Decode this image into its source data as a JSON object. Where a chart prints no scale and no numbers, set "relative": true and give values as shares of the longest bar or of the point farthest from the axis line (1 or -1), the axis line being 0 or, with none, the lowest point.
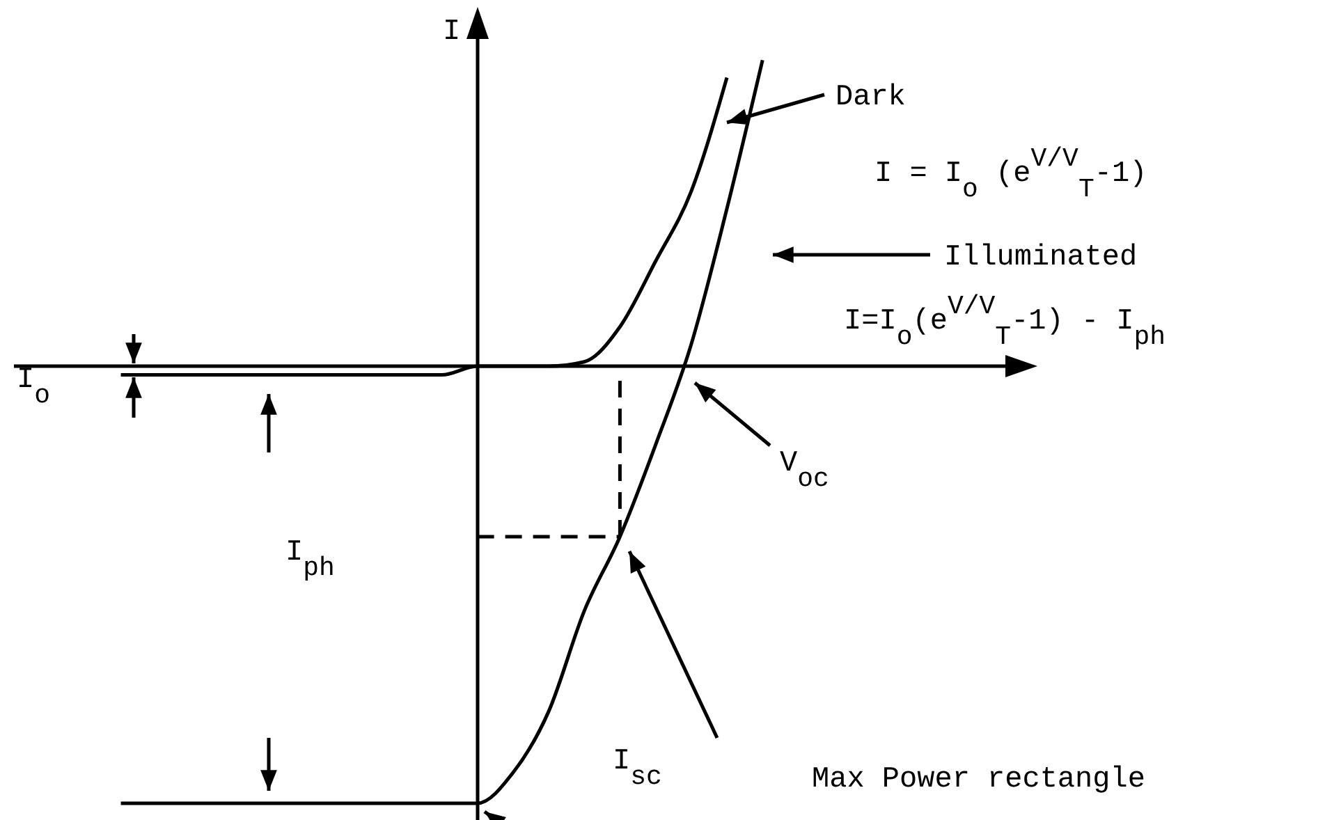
{
  "chart_data": {
    "type": "line",
    "relative": true,
    "ylabel": "I",
    "categories": [
      null,
      null,
      null,
      null,
      null,
      null,
      null,
      null,
      null,
      null,
      null,
      null,
      null,
      null,
      null,
      null,
      null,
      null,
      null,
      null,
      null,
      null,
      null,
      null,
      null,
      null,
      null,
      null,
      null
    ],
    "series": [
      {
        "name": "Dark",
        "color": "#000000",
        "values": [
          null,
          null,
          null,
          -0.02,
          -0.02,
          -0.02,
          -0.02,
          -0.02,
          -0.02,
          -0.02,
          -0.02,
          -0.02,
          -0.02,
          0,
          0,
          0,
          0.01,
          0.09,
          0.24,
          0.4,
          0.66,
          null,
          null,
          null,
          null,
          null,
          null,
          null,
          null
        ]
      },
      {
        "name": "Illuminated",
        "color": "#000000",
        "values": [
          null,
          null,
          null,
          -1,
          -1,
          -1,
          -1,
          -1,
          -1,
          -1,
          -1,
          -1,
          -1,
          -1,
          -0.93,
          -0.79,
          -0.56,
          -0.39,
          -0.18,
          0.05,
          0.36,
          0.7,
          null,
          null,
          null,
          null,
          null,
          null,
          null
        ]
      },
      {
        "type": "line",
        "line_style": "dashed",
        "color": "#000000",
        "values": [
          null,
          null,
          null,
          null,
          null,
          null,
          null,
          null,
          null,
          null,
          null,
          null,
          null,
          -0.39,
          -0.39,
          -0.39,
          -0.39,
          -0.39,
          null,
          null,
          null,
          null,
          null,
          null,
          null,
          null,
          null,
          null,
          null
        ]
      }
    ],
    "annotations": [
      "I = I$_{o}$ (e$^{V/V}$$_{T}$-1)",
      "I=I$_{o}$(e$^{V/V}$$_{T}$-1) - I$_{ph}$",
      "I$_{o}$",
      "I$_{ph}$",
      "V$_{oc}$",
      "I$_{sc}$",
      "Max Power rectangle"
    ]
  }
}
